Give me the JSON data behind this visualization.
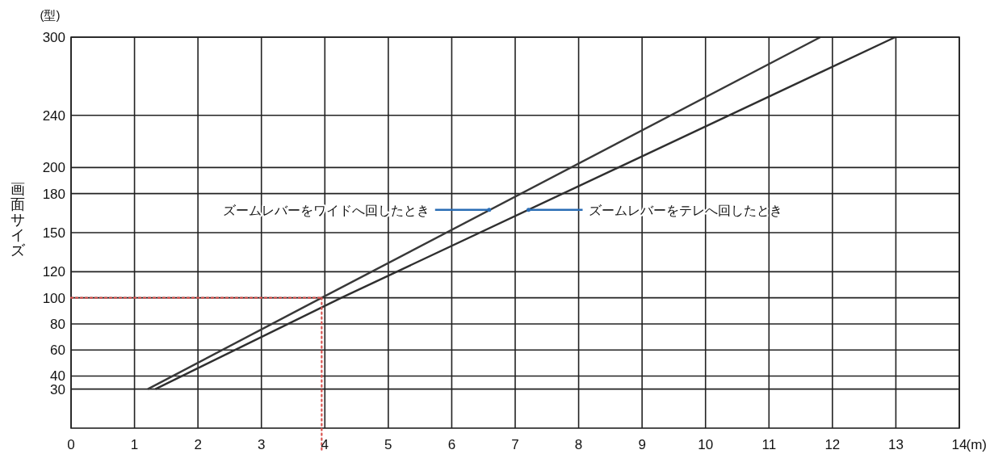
{
  "chart_data": {
    "type": "line",
    "ylabel": "画面サイズ",
    "xlabel": "(m)",
    "xlim": [
      0,
      14
    ],
    "xticks": [
      0,
      1,
      2,
      3,
      4,
      5,
      6,
      7,
      8,
      9,
      10,
      11,
      12,
      13,
      14
    ],
    "ylim": [
      0,
      300
    ],
    "yticks": [
      30,
      40,
      60,
      80,
      100,
      120,
      150,
      180,
      200,
      240,
      300
    ],
    "grid": true,
    "line_style": "solid",
    "series": [
      {
        "color": "#2f2f2f",
        "x": [
          1.33,
          4.26,
          12.99
        ],
        "values": [
          30,
          100,
          300
        ]
      },
      {
        "color": "#383838",
        "x": [
          1.21,
          3.95,
          11.81
        ],
        "values": [
          30,
          100,
          300
        ]
      }
    ],
    "ref_lines": [
      {
        "axis": "y",
        "value": 100,
        "color": "#d9534f",
        "line_style": "dotted"
      },
      {
        "axis": "x",
        "value": 3.95,
        "color": "#d9534f",
        "line_style": "dotted"
      }
    ],
    "annotations": [
      "(型)",
      {
        "text": "ズームレバーをワイドへ回したとき",
        "x": 6.59,
        "y": 167.5
      },
      {
        "text": "ズームレバーをテレへ回したとき",
        "x": 7.21,
        "y": 167.5
      }
    ]
  }
}
